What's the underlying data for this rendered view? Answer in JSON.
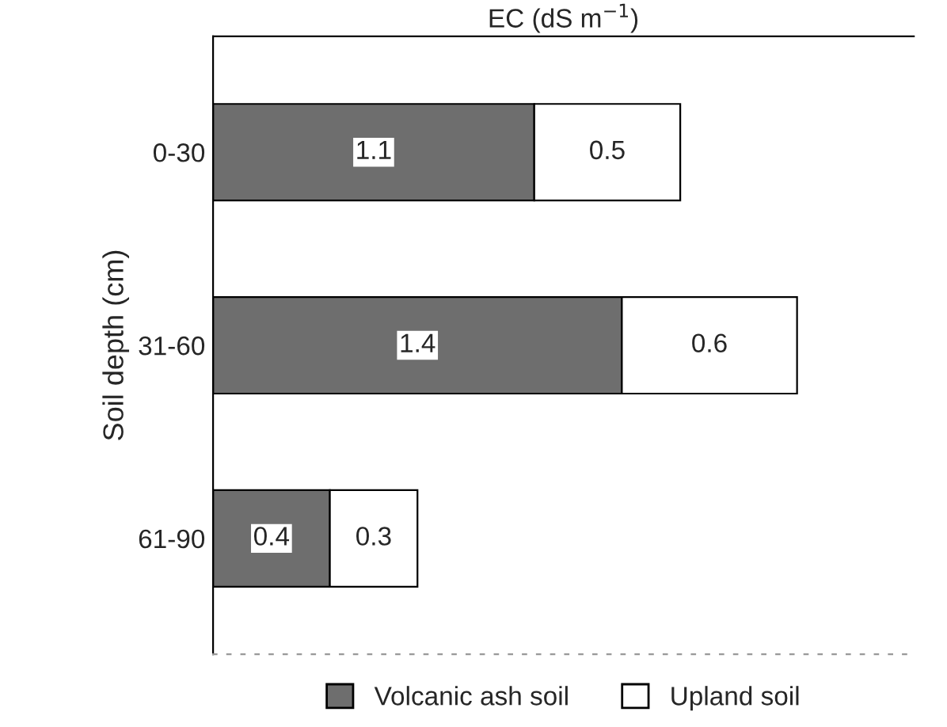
{
  "chart_data": {
    "type": "bar",
    "orientation": "horizontal",
    "stacked": true,
    "xlabel": "EC (dS m$^{−1}$)",
    "ylabel": "Soil depth (cm)",
    "categories": [
      "0-30",
      "31-60",
      "61-90"
    ],
    "series": [
      {
        "name": "Volcanic ash soil",
        "color": "#6e6e6e",
        "values": [
          1.1,
          1.4,
          0.4
        ]
      },
      {
        "name": "Upland soil",
        "color": "#ffffff",
        "values": [
          0.5,
          0.6,
          0.3
        ]
      }
    ],
    "xlim": [
      0,
      2.4
    ],
    "data_labels": true,
    "tick_labels": "y",
    "legend": "bottom",
    "grid": false
  }
}
